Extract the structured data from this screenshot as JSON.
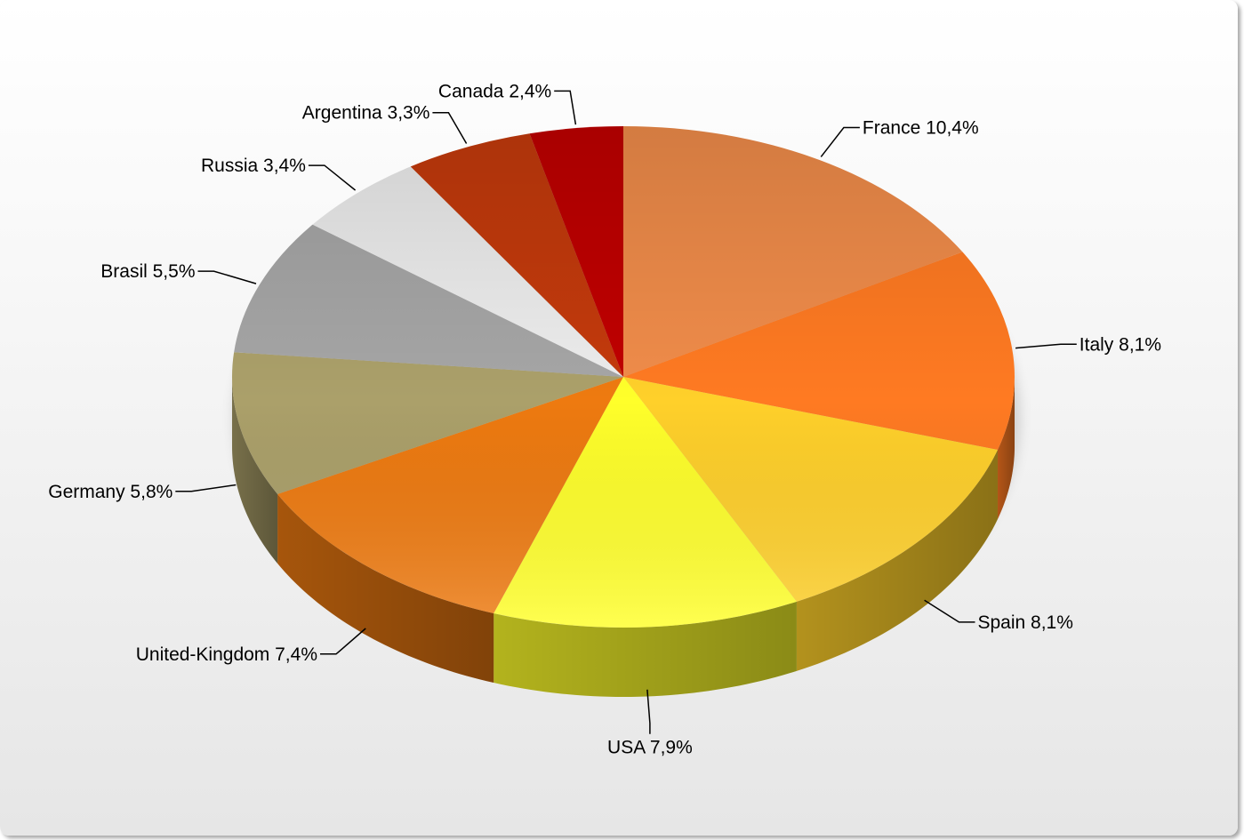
{
  "chart_data": {
    "type": "pie",
    "title": "",
    "slices": [
      {
        "label": "France 10,4%",
        "name": "France",
        "value": 10.4,
        "color": "#F08C4A"
      },
      {
        "label": "Italy  8,1%",
        "name": "Italy",
        "value": 8.1,
        "color": "#FF7A22"
      },
      {
        "label": "Spain  8,1%",
        "name": "Spain",
        "value": 8.1,
        "color": "#FFD02A"
      },
      {
        "label": "USA 7,9%",
        "name": "USA",
        "value": 7.9,
        "color": "#FFFF2A"
      },
      {
        "label": "United-Kingdom  7,4%",
        "name": "United-Kingdom",
        "value": 7.4,
        "color": "#EE7A10"
      },
      {
        "label": "Germany  5,8%",
        "name": "Germany",
        "value": 5.8,
        "color": "#ABA06A"
      },
      {
        "label": "Brasil 5,5%",
        "name": "Brasil",
        "value": 5.5,
        "color": "#A6A6A6"
      },
      {
        "label": "Russia 3,4%",
        "name": "Russia",
        "value": 3.4,
        "color": "#EDEDED"
      },
      {
        "label": "Argentina  3,3%",
        "name": "Argentina",
        "value": 3.3,
        "color": "#C43A0C"
      },
      {
        "label": "Canada 2,4%",
        "name": "Canada",
        "value": 2.4,
        "color": "#C00000"
      }
    ]
  }
}
